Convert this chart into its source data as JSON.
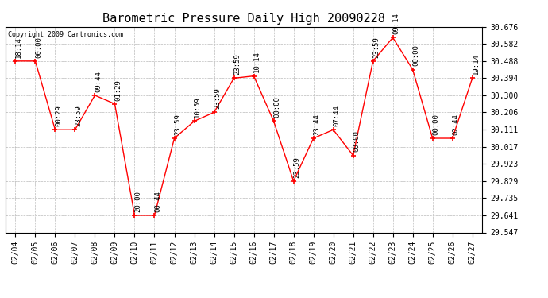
{
  "title": "Barometric Pressure Daily High 20090228",
  "copyright": "Copyright 2009 Cartronics.com",
  "dates": [
    "02/04",
    "02/05",
    "02/06",
    "02/07",
    "02/08",
    "02/09",
    "02/10",
    "02/11",
    "02/12",
    "02/13",
    "02/14",
    "02/15",
    "02/16",
    "02/17",
    "02/18",
    "02/19",
    "02/20",
    "02/21",
    "02/22",
    "02/23",
    "02/24",
    "02/25",
    "02/26",
    "02/27"
  ],
  "values": [
    30.488,
    30.488,
    30.111,
    30.111,
    30.3,
    30.253,
    29.641,
    29.641,
    30.064,
    30.158,
    30.206,
    30.394,
    30.406,
    30.158,
    29.829,
    30.064,
    30.111,
    29.97,
    30.488,
    30.617,
    30.441,
    30.064,
    30.064,
    30.394
  ],
  "times": [
    "18:14",
    "00:00",
    "00:29",
    "23:59",
    "09:44",
    "01:29",
    "20:00",
    "00:44",
    "23:59",
    "10:59",
    "23:59",
    "23:59",
    "10:14",
    "00:00",
    "23:59",
    "23:44",
    "07:44",
    "00:00",
    "23:59",
    "09:14",
    "00:00",
    "00:00",
    "02:44",
    "19:14"
  ],
  "ylim_min": 29.547,
  "ylim_max": 30.676,
  "yticks": [
    29.547,
    29.641,
    29.735,
    29.829,
    29.923,
    30.017,
    30.111,
    30.206,
    30.3,
    30.394,
    30.488,
    30.582,
    30.676
  ],
  "line_color": "red",
  "marker_color": "red",
  "background_color": "#ffffff",
  "grid_color": "#bbbbbb",
  "title_fontsize": 11,
  "tick_fontsize": 7,
  "annotation_fontsize": 6.5,
  "copyright_fontsize": 6
}
